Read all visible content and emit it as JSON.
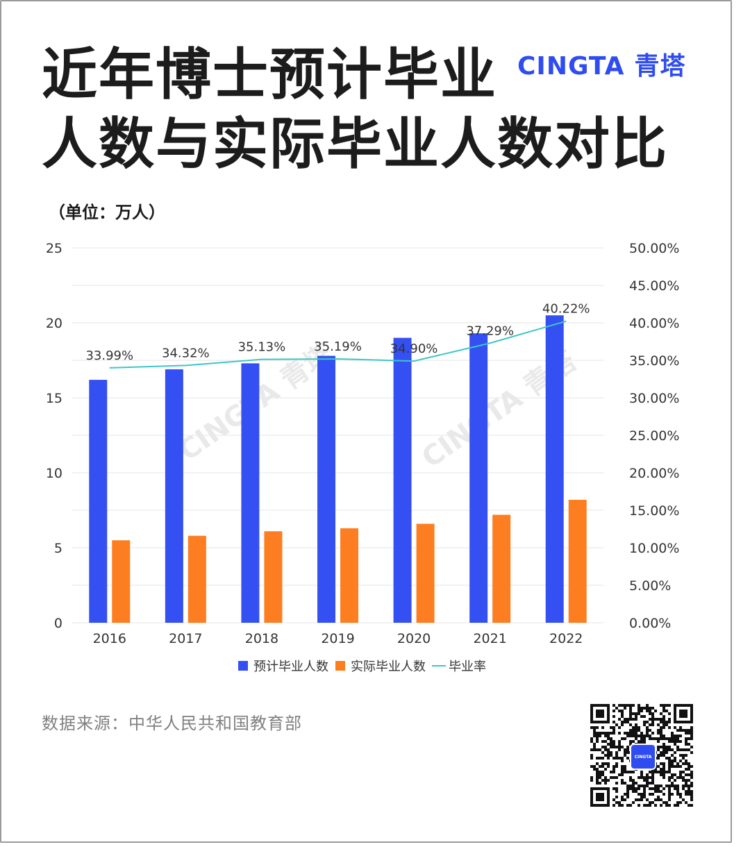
{
  "header": {
    "title_line1": "近年博士预计毕业",
    "title_line2": "人数与实际毕业人数对比",
    "brand_latin": "CINGTA",
    "brand_cn": "青塔"
  },
  "unit_label": "（单位：万人）",
  "source_text": "数据来源：中华人民共和国教育部",
  "qr": {
    "badge_text": "CINGTA"
  },
  "colors": {
    "expected": "#3550f2",
    "actual": "#fd7e20",
    "rate": "#3cc6c8",
    "grid": "#e6e6e6",
    "axis_text": "#333333"
  },
  "chart_data": {
    "type": "bar",
    "categories": [
      "2016",
      "2017",
      "2018",
      "2019",
      "2020",
      "2021",
      "2022"
    ],
    "series": [
      {
        "name": "预计毕业人数",
        "type": "bar",
        "axis": "left",
        "values": [
          16.2,
          16.9,
          17.3,
          17.8,
          19.0,
          19.3,
          20.5
        ]
      },
      {
        "name": "实际毕业人数",
        "type": "bar",
        "axis": "left",
        "values": [
          5.5,
          5.8,
          6.1,
          6.3,
          6.6,
          7.2,
          8.2
        ]
      },
      {
        "name": "毕业率",
        "type": "line",
        "axis": "right",
        "values": [
          33.99,
          34.32,
          35.13,
          35.19,
          34.9,
          37.29,
          40.22
        ],
        "labels": [
          "33.99%",
          "34.32%",
          "35.13%",
          "35.19%",
          "34.90%",
          "37.29%",
          "40.22%"
        ]
      }
    ],
    "y_left": {
      "min": 0,
      "max": 25,
      "ticks": [
        "0",
        "5",
        "10",
        "15",
        "20",
        "25"
      ]
    },
    "y_right": {
      "min": 0,
      "max": 50,
      "ticks": [
        "0.00%",
        "5.00%",
        "10.00%",
        "15.00%",
        "20.00%",
        "25.00%",
        "30.00%",
        "35.00%",
        "40.00%",
        "45.00%",
        "50.00%"
      ]
    },
    "grid": true,
    "legend": "bottom-center"
  }
}
